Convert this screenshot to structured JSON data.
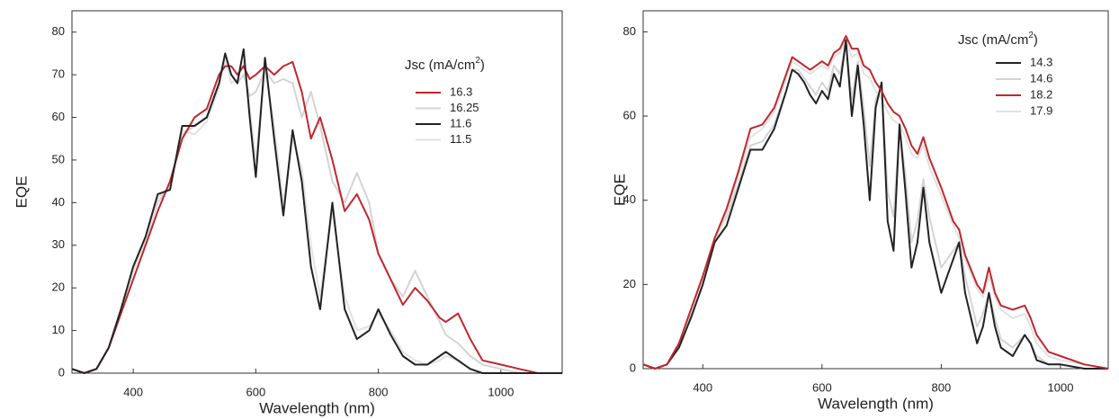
{
  "chart_data": [
    {
      "type": "line",
      "xlabel": "Wavelength (nm)",
      "ylabel": "EQE",
      "legend_title": [
        "Jsc (mA/cm",
        "2",
        ")"
      ],
      "xlim": [
        300,
        1100
      ],
      "ylim": [
        0,
        85
      ],
      "xticks": [
        400,
        600,
        800,
        1000
      ],
      "yticks": [
        0,
        10,
        20,
        30,
        40,
        50,
        60,
        70,
        80
      ],
      "x": [
        300,
        320,
        340,
        360,
        380,
        400,
        420,
        440,
        460,
        480,
        500,
        520,
        540,
        550,
        560,
        570,
        580,
        590,
        600,
        615,
        630,
        645,
        660,
        675,
        690,
        705,
        725,
        745,
        765,
        785,
        800,
        820,
        840,
        860,
        880,
        900,
        910,
        930,
        950,
        970,
        1000,
        1030,
        1060,
        1100
      ],
      "series": [
        {
          "name": "16.3",
          "color": "#c0272d",
          "values": [
            1,
            0,
            1,
            6,
            14,
            22,
            30,
            38,
            45,
            55,
            60,
            62,
            70,
            72,
            72,
            70,
            72,
            69,
            70,
            72,
            70,
            72,
            73,
            66,
            55,
            60,
            50,
            38,
            42,
            36,
            28,
            22,
            16,
            20,
            17,
            13,
            12,
            14,
            8,
            3,
            2,
            1,
            0,
            0
          ]
        },
        {
          "name": "16.25",
          "color": "#d4d4d4",
          "values": [
            1,
            0,
            1,
            6,
            15,
            24,
            31,
            40,
            44,
            56,
            58,
            60,
            68,
            73,
            70,
            68,
            70,
            65,
            66,
            71,
            68,
            69,
            68,
            60,
            66,
            58,
            45,
            40,
            47,
            40,
            28,
            22,
            18,
            24,
            18,
            12,
            9,
            7,
            4,
            2,
            1,
            0,
            0,
            0
          ]
        },
        {
          "name": "11.6",
          "color": "#222222",
          "values": [
            1,
            0,
            1,
            6,
            15,
            25,
            32,
            42,
            43,
            58,
            58,
            60,
            68,
            75,
            70,
            68,
            76,
            60,
            46,
            74,
            55,
            37,
            57,
            45,
            25,
            15,
            40,
            15,
            8,
            10,
            15,
            9,
            4,
            2,
            2,
            4,
            5,
            3,
            1,
            0,
            0,
            0,
            0,
            0
          ]
        },
        {
          "name": "11.5",
          "color": "#e2e2e2",
          "values": [
            1,
            0,
            1,
            6,
            14,
            24,
            31,
            41,
            44,
            57,
            56,
            59,
            67,
            74,
            68,
            69,
            73,
            62,
            50,
            72,
            58,
            40,
            55,
            48,
            30,
            18,
            38,
            18,
            10,
            11,
            14,
            10,
            5,
            3,
            2,
            3,
            4,
            3,
            1,
            0,
            0,
            0,
            0,
            0
          ]
        }
      ]
    },
    {
      "type": "line",
      "xlabel": "Wavelength (nm)",
      "ylabel": "EQE",
      "legend_title": [
        "Jsc (mA/cm",
        "2",
        ")"
      ],
      "xlim": [
        300,
        1080
      ],
      "ylim": [
        0,
        85
      ],
      "xticks": [
        400,
        600,
        800,
        1000
      ],
      "yticks": [
        0,
        20,
        40,
        60,
        80
      ],
      "x": [
        300,
        320,
        340,
        360,
        380,
        400,
        420,
        440,
        460,
        480,
        500,
        520,
        540,
        550,
        560,
        570,
        580,
        590,
        600,
        610,
        620,
        630,
        640,
        650,
        660,
        670,
        680,
        690,
        700,
        710,
        720,
        730,
        740,
        750,
        760,
        770,
        780,
        800,
        820,
        830,
        840,
        860,
        870,
        880,
        890,
        900,
        920,
        940,
        950,
        960,
        980,
        1000,
        1040,
        1080
      ],
      "series": [
        {
          "name": "14.3",
          "color": "#222222",
          "values": [
            1,
            0,
            1,
            5,
            12,
            20,
            30,
            34,
            43,
            52,
            52,
            57,
            66,
            71,
            70,
            68,
            65,
            63,
            66,
            64,
            70,
            67,
            78,
            60,
            72,
            58,
            40,
            62,
            68,
            35,
            28,
            58,
            42,
            24,
            30,
            43,
            30,
            18,
            26,
            30,
            18,
            6,
            10,
            18,
            10,
            5,
            3,
            8,
            6,
            2,
            1,
            1,
            0,
            0
          ]
        },
        {
          "name": "14.6",
          "color": "#d4d4d4",
          "values": [
            1,
            0,
            1,
            6,
            13,
            21,
            31,
            36,
            44,
            53,
            54,
            58,
            66,
            71,
            71,
            69,
            67,
            65,
            68,
            66,
            72,
            70,
            77,
            64,
            73,
            62,
            48,
            64,
            67,
            42,
            36,
            57,
            46,
            30,
            35,
            45,
            36,
            24,
            28,
            30,
            22,
            10,
            13,
            18,
            12,
            7,
            5,
            8,
            6,
            3,
            1,
            1,
            0,
            0
          ]
        },
        {
          "name": "18.2",
          "color": "#c0272d",
          "values": [
            1,
            0,
            1,
            6,
            14,
            22,
            31,
            38,
            47,
            57,
            58,
            62,
            70,
            74,
            73,
            72,
            71,
            72,
            73,
            72,
            75,
            76,
            79,
            76,
            76,
            72,
            71,
            68,
            66,
            63,
            61,
            60,
            57,
            53,
            51,
            55,
            50,
            43,
            35,
            33,
            27,
            20,
            18,
            24,
            18,
            15,
            14,
            15,
            12,
            8,
            4,
            3,
            1,
            0
          ]
        },
        {
          "name": "17.9",
          "color": "#e2e2e2",
          "values": [
            1,
            0,
            1,
            6,
            13,
            21,
            30,
            37,
            46,
            55,
            57,
            61,
            69,
            73,
            72,
            71,
            70,
            71,
            72,
            71,
            74,
            75,
            78,
            74,
            75,
            70,
            69,
            66,
            64,
            61,
            59,
            58,
            55,
            51,
            50,
            53,
            48,
            41,
            34,
            31,
            26,
            19,
            17,
            22,
            17,
            14,
            12,
            13,
            10,
            6,
            3,
            2,
            1,
            0
          ]
        }
      ]
    }
  ]
}
